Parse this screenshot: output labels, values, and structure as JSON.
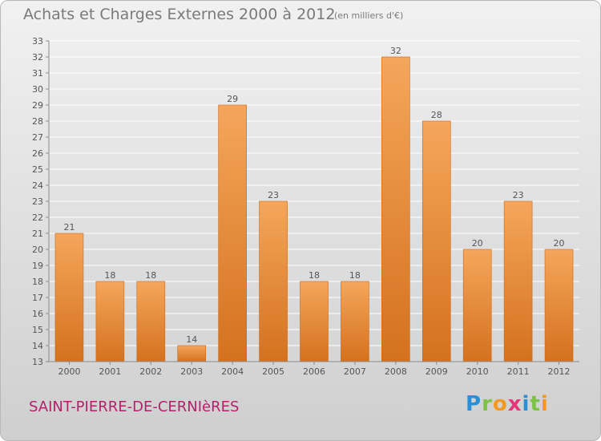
{
  "header": {
    "title": "Achats et Charges Externes 2000 à 2012",
    "unit": "(en milliers d'€)"
  },
  "footer": {
    "place": "SAINT-PIERRE-DE-CERNIèRES"
  },
  "logo": {
    "text": "Proxiti",
    "letters": [
      {
        "ch": "P",
        "color": "#2b8fd6"
      },
      {
        "ch": "r",
        "color": "#7cc243"
      },
      {
        "ch": "o",
        "color": "#f29a1f"
      },
      {
        "ch": "x",
        "color": "#e8357a"
      },
      {
        "ch": "i",
        "color": "#2b8fd6"
      },
      {
        "ch": "t",
        "color": "#7cc243"
      },
      {
        "ch": "i",
        "color": "#f29a1f"
      }
    ]
  },
  "colors": {
    "bar_light": "#f5a65b",
    "bar_dark": "#d4711e",
    "bar_edge": "#c9691a",
    "axis": "#8c8c8c",
    "grid": "#ffffff",
    "text": "#555555",
    "title": "#7a7a7a",
    "place": "#b4206a"
  },
  "chart_data": {
    "type": "bar",
    "title": "Achats et Charges Externes 2000 à 2012",
    "subtitle": "(en milliers d'€)",
    "categories": [
      "2000",
      "2001",
      "2002",
      "2003",
      "2004",
      "2005",
      "2006",
      "2007",
      "2008",
      "2009",
      "2010",
      "2011",
      "2012"
    ],
    "values": [
      21,
      18,
      18,
      14,
      29,
      23,
      18,
      18,
      32,
      28,
      20,
      23,
      20
    ],
    "data_labels": [
      "21",
      "18",
      "18",
      "14",
      "29",
      "23",
      "18",
      "18",
      "32",
      "28",
      "20",
      "23",
      "20"
    ],
    "ylim": [
      13,
      33
    ],
    "yticks": [
      "13",
      "14",
      "15",
      "16",
      "17",
      "18",
      "19",
      "20",
      "21",
      "22",
      "23",
      "24",
      "25",
      "26",
      "27",
      "28",
      "29",
      "30",
      "31",
      "32",
      "33"
    ],
    "grid": "horizontal",
    "legend": "none"
  }
}
